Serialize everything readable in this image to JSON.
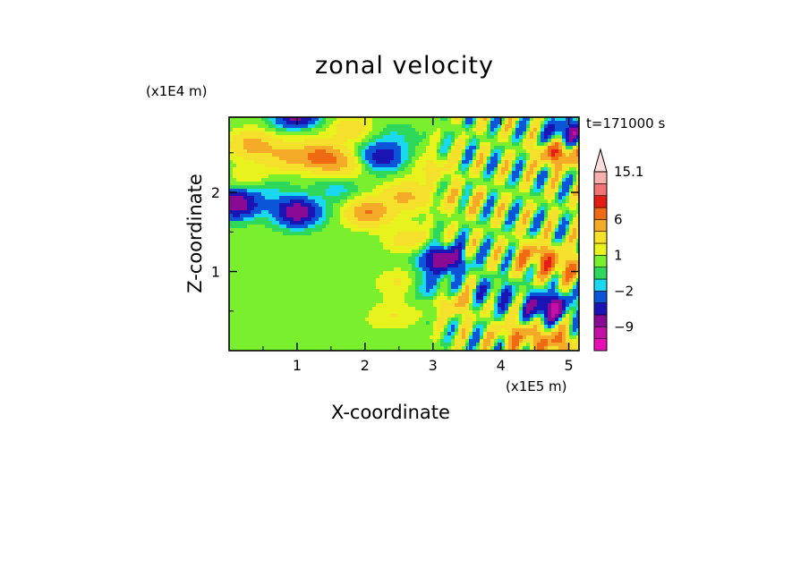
{
  "chart_data": {
    "type": "heatmap",
    "title": "zonal velocity",
    "xlabel": "X-coordinate",
    "ylabel": "Z-coordinate",
    "x_unit_label": "(x1E5 m)",
    "y_unit_label": "(x1E4 m)",
    "time_label": "t=171000 s",
    "xlim": [
      0,
      5.15
    ],
    "ylim": [
      0,
      2.95
    ],
    "x_ticks": [
      1,
      2,
      3,
      4,
      5
    ],
    "y_ticks": [
      1,
      2
    ],
    "colorbar": {
      "levels": [
        -14,
        -11.5,
        -9,
        -6.5,
        -4,
        -2,
        -1,
        0,
        1,
        2,
        4,
        6,
        8.3,
        10.6,
        12.9,
        15.1
      ],
      "colors": [
        "#e90fb4",
        "#c40fa6",
        "#8a0a96",
        "#1a14b4",
        "#0a55d8",
        "#19d8f0",
        "#2ed85a",
        "#7aef2e",
        "#e8f21c",
        "#f5e12b",
        "#f5aa28",
        "#f06a14",
        "#e41e14",
        "#f07474",
        "#f7b0ae"
      ],
      "tick_labels": [
        {
          "value": 15.1,
          "label": "15.1"
        },
        {
          "value": 6,
          "label": "6"
        },
        {
          "value": 1,
          "label": "1"
        },
        {
          "value": -2,
          "label": "−2"
        },
        {
          "value": -9,
          "label": "−9"
        }
      ]
    },
    "features": [
      {
        "x": 0.35,
        "z": 2.6,
        "u": 5
      },
      {
        "x": 0.85,
        "z": 2.45,
        "u": 4
      },
      {
        "x": 1.35,
        "z": 2.45,
        "u": 6.5
      },
      {
        "x": 1.7,
        "z": 2.35,
        "u": 3.5
      },
      {
        "x": 1.05,
        "z": 2.85,
        "u": 3
      },
      {
        "x": 1.8,
        "z": 2.8,
        "u": 3
      },
      {
        "x": 2.25,
        "z": 2.45,
        "u": -5.5
      },
      {
        "x": 2.45,
        "z": 2.7,
        "u": -1
      },
      {
        "x": 1.0,
        "z": 1.75,
        "u": -9
      },
      {
        "x": 0.1,
        "z": 1.85,
        "u": -9
      },
      {
        "x": 0.55,
        "z": 2.05,
        "u": -1.5
      },
      {
        "x": 1.6,
        "z": 2.05,
        "u": -1.5
      },
      {
        "x": 0.35,
        "z": 2.15,
        "u": 2.5
      },
      {
        "x": 2.05,
        "z": 1.75,
        "u": 6
      },
      {
        "x": 2.6,
        "z": 1.95,
        "u": 4.5
      },
      {
        "x": 2.65,
        "z": 1.4,
        "u": 3
      },
      {
        "x": 0.6,
        "z": 1.05,
        "u": 0.5
      },
      {
        "x": 1.25,
        "z": 0.85,
        "u": 0.5
      },
      {
        "x": 0.45,
        "z": 0.5,
        "u": 0.5
      },
      {
        "x": 2.0,
        "z": 0.35,
        "u": 0.8
      },
      {
        "x": 2.55,
        "z": 0.85,
        "u": 2.5
      },
      {
        "x": 2.45,
        "z": 0.45,
        "u": 2
      },
      {
        "x": 2.95,
        "z": 0.8,
        "u": -2.5
      },
      {
        "x": 3.15,
        "z": 1.15,
        "u": -9
      },
      {
        "x": 3.35,
        "z": 0.6,
        "u": 4
      },
      {
        "x": 3.4,
        "z": 1.9,
        "u": 2.5
      },
      {
        "x": 3.0,
        "z": 2.3,
        "u": 2.5
      },
      {
        "x": 4.7,
        "z": 0.55,
        "u": -9
      },
      {
        "x": 4.55,
        "z": 1.2,
        "u": 6
      },
      {
        "x": 4.95,
        "z": 1.05,
        "u": 5
      },
      {
        "x": 4.85,
        "z": 2.5,
        "u": 8
      },
      {
        "x": 5.0,
        "z": 2.75,
        "u": -7
      },
      {
        "x": 4.25,
        "z": 0.2,
        "u": 5
      },
      {
        "x": 4.8,
        "z": 0.1,
        "u": 6
      },
      {
        "x": 3.9,
        "z": 0.7,
        "u": -3
      },
      {
        "x": 1.0,
        "z": 2.95,
        "u": -9
      }
    ]
  }
}
